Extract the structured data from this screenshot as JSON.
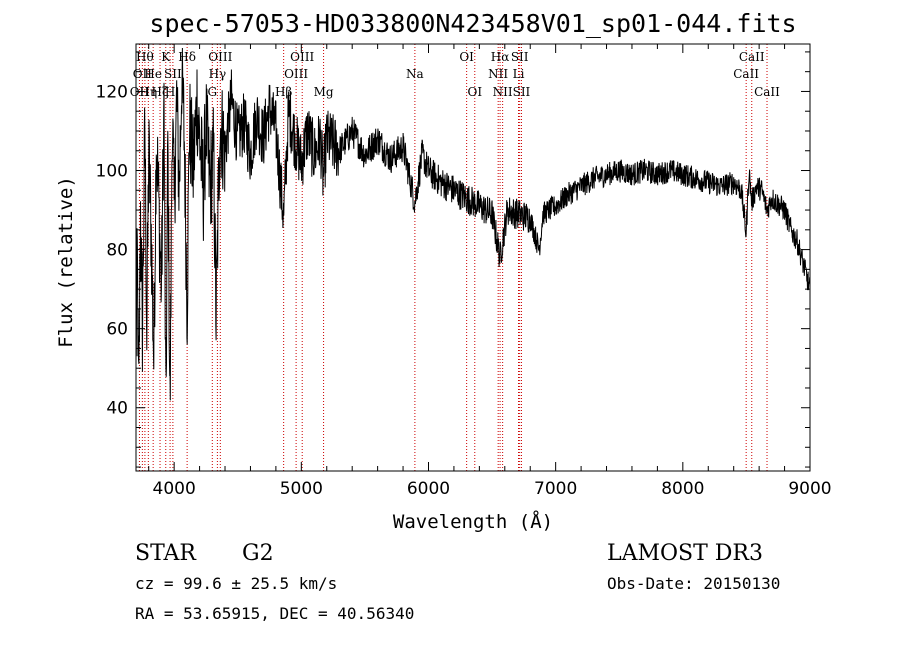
{
  "chart_data": {
    "type": "line",
    "title": "spec-57053-HD033800N423458V01_sp01-044.fits",
    "xlabel": "Wavelength (Å)",
    "ylabel": "Flux (relative)",
    "xlim": [
      3700,
      9000
    ],
    "ylim": [
      24,
      132
    ],
    "x_ticks": [
      4000,
      5000,
      6000,
      7000,
      8000,
      9000
    ],
    "y_ticks": [
      40,
      60,
      80,
      100,
      120
    ],
    "grid": false,
    "series": [
      {
        "anchors": [
          [
            3700,
            52
          ],
          [
            3710,
            78
          ],
          [
            3722,
            40
          ],
          [
            3735,
            90
          ],
          [
            3750,
            60
          ],
          [
            3770,
            112
          ],
          [
            3785,
            58
          ],
          [
            3800,
            105
          ],
          [
            3820,
            84
          ],
          [
            3840,
            52
          ],
          [
            3860,
            110
          ],
          [
            3880,
            90
          ],
          [
            3900,
            70
          ],
          [
            3920,
            118
          ],
          [
            3935,
            36
          ],
          [
            3950,
            108
          ],
          [
            3968,
            38
          ],
          [
            3985,
            116
          ],
          [
            4000,
            90
          ],
          [
            4020,
            118
          ],
          [
            4040,
            95
          ],
          [
            4060,
            125
          ],
          [
            4080,
            108
          ],
          [
            4102,
            65
          ],
          [
            4120,
            112
          ],
          [
            4150,
            100
          ],
          [
            4180,
            118
          ],
          [
            4200,
            108
          ],
          [
            4230,
            95
          ],
          [
            4250,
            112
          ],
          [
            4280,
            96
          ],
          [
            4310,
            104
          ],
          [
            4330,
            62
          ],
          [
            4345,
            88
          ],
          [
            4360,
            112
          ],
          [
            4400,
            105
          ],
          [
            4450,
            118
          ],
          [
            4500,
            108
          ],
          [
            4550,
            112
          ],
          [
            4600,
            104
          ],
          [
            4650,
            114
          ],
          [
            4700,
            108
          ],
          [
            4750,
            116
          ],
          [
            4800,
            110
          ],
          [
            4861,
            88
          ],
          [
            4900,
            115
          ],
          [
            4950,
            108
          ],
          [
            5000,
            102
          ],
          [
            5050,
            110
          ],
          [
            5100,
            104
          ],
          [
            5150,
            108
          ],
          [
            5172,
            98
          ],
          [
            5200,
            108
          ],
          [
            5300,
            105
          ],
          [
            5400,
            110
          ],
          [
            5500,
            104
          ],
          [
            5600,
            108
          ],
          [
            5700,
            103
          ],
          [
            5800,
            106
          ],
          [
            5893,
            92
          ],
          [
            5950,
            104
          ],
          [
            6000,
            100
          ],
          [
            6100,
            97
          ],
          [
            6200,
            95
          ],
          [
            6300,
            93
          ],
          [
            6400,
            91
          ],
          [
            6500,
            89
          ],
          [
            6563,
            78
          ],
          [
            6620,
            90
          ],
          [
            6700,
            89
          ],
          [
            6800,
            88
          ],
          [
            6870,
            80
          ],
          [
            6900,
            89
          ],
          [
            7000,
            91
          ],
          [
            7100,
            94
          ],
          [
            7200,
            96
          ],
          [
            7300,
            98
          ],
          [
            7400,
            99
          ],
          [
            7500,
            100
          ],
          [
            7600,
            99
          ],
          [
            7700,
            100
          ],
          [
            7800,
            99
          ],
          [
            7900,
            100
          ],
          [
            8000,
            99
          ],
          [
            8100,
            98
          ],
          [
            8200,
            97
          ],
          [
            8300,
            96
          ],
          [
            8400,
            97
          ],
          [
            8460,
            95
          ],
          [
            8498,
            84
          ],
          [
            8520,
            100
          ],
          [
            8542,
            92
          ],
          [
            8580,
            96
          ],
          [
            8620,
            95
          ],
          [
            8662,
            90
          ],
          [
            8700,
            93
          ],
          [
            8800,
            90
          ],
          [
            8850,
            85
          ],
          [
            8900,
            82
          ],
          [
            8950,
            76
          ],
          [
            9000,
            70
          ]
        ]
      }
    ],
    "spectral_lines": [
      {
        "wave": 3727,
        "label": "OII",
        "row": 3
      },
      {
        "wave": 3750,
        "label": "OII",
        "row": 2
      },
      {
        "wave": 3770,
        "label": "Hθ",
        "row": 1
      },
      {
        "wave": 3797,
        "label": "Hη",
        "row": 3
      },
      {
        "wave": 3835,
        "label": "He",
        "row": 2
      },
      {
        "wave": 3889,
        "label": "Hζ",
        "row": 3
      },
      {
        "wave": 3934,
        "label": "K",
        "row": 1
      },
      {
        "wave": 3968,
        "label": "H",
        "row": 3
      },
      {
        "wave": 3990,
        "label": "SII",
        "row": 2
      },
      {
        "wave": 4102,
        "label": "Hδ",
        "row": 1
      },
      {
        "wave": 4300,
        "label": "G",
        "row": 3
      },
      {
        "wave": 4340,
        "label": "Hγ",
        "row": 2
      },
      {
        "wave": 4363,
        "label": "OIII",
        "row": 1
      },
      {
        "wave": 4861,
        "label": "Hβ",
        "row": 3
      },
      {
        "wave": 4959,
        "label": "OIII",
        "row": 2
      },
      {
        "wave": 5007,
        "label": "OIII",
        "row": 1
      },
      {
        "wave": 5175,
        "label": "Mg",
        "row": 3
      },
      {
        "wave": 5893,
        "label": "Na",
        "row": 2
      },
      {
        "wave": 6300,
        "label": "OI",
        "row": 1
      },
      {
        "wave": 6364,
        "label": "OI",
        "row": 3
      },
      {
        "wave": 6548,
        "label": "NII",
        "row": 2
      },
      {
        "wave": 6563,
        "label": "Hα",
        "row": 1
      },
      {
        "wave": 6583,
        "label": "NII",
        "row": 3
      },
      {
        "wave": 6708,
        "label": "Li",
        "row": 2
      },
      {
        "wave": 6717,
        "label": "SII",
        "row": 1
      },
      {
        "wave": 6731,
        "label": "SII",
        "row": 3
      },
      {
        "wave": 8498,
        "label": "CaII",
        "row": 2
      },
      {
        "wave": 8542,
        "label": "CaII",
        "row": 1
      },
      {
        "wave": 8662,
        "label": "CaII",
        "row": 3
      }
    ],
    "colors": {
      "spectrum": "#000000",
      "line_markers": "#cc0000"
    }
  },
  "info": {
    "object_type": "STAR",
    "subclass": "G2",
    "survey": "LAMOST DR3",
    "redshift": "cz = 99.6 ± 25.5 km/s",
    "obs_date": "Obs-Date: 20150130",
    "coords": "RA =  53.65915, DEC =  40.56340"
  }
}
